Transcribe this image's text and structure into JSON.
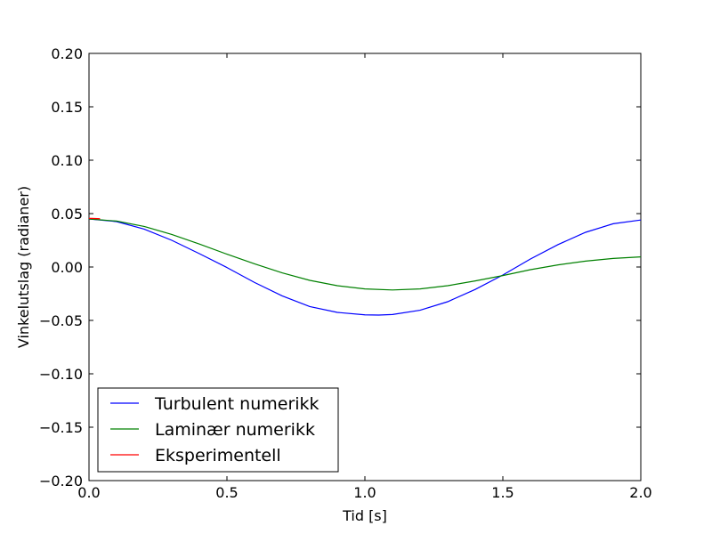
{
  "chart_data": {
    "type": "line",
    "xlabel": "Tid [s]",
    "ylabel": "Vinkelutslag (radianer)",
    "xlim": [
      0.0,
      2.0
    ],
    "ylim": [
      -0.2,
      0.2
    ],
    "xticks": [
      0.0,
      0.5,
      1.0,
      1.5,
      2.0
    ],
    "xtick_labels": [
      "0.0",
      "0.5",
      "1.0",
      "1.5",
      "2.0"
    ],
    "yticks": [
      -0.2,
      -0.15,
      -0.1,
      -0.05,
      0.0,
      0.05,
      0.1,
      0.15,
      0.2
    ],
    "ytick_labels": [
      "−0.20",
      "−0.15",
      "−0.10",
      "−0.05",
      "0.00",
      "0.05",
      "0.10",
      "0.15",
      "0.20"
    ],
    "grid": false,
    "legend_position": "lower-left",
    "series": [
      {
        "name": "Turbulent numerikk",
        "color": "#0000ff",
        "x": [
          0.0,
          0.1,
          0.2,
          0.3,
          0.4,
          0.5,
          0.6,
          0.7,
          0.8,
          0.9,
          1.0,
          1.05,
          1.1,
          1.2,
          1.3,
          1.4,
          1.5,
          1.6,
          1.7,
          1.8,
          1.9,
          2.0
        ],
        "y": [
          0.045,
          0.0425,
          0.0355,
          0.025,
          0.0125,
          -0.0005,
          -0.0145,
          -0.027,
          -0.037,
          -0.0425,
          -0.0448,
          -0.045,
          -0.0445,
          -0.0405,
          -0.0325,
          -0.021,
          -0.0075,
          0.0075,
          0.021,
          0.0325,
          0.0405,
          0.044
        ]
      },
      {
        "name": "Laminær numerikk",
        "color": "#008000",
        "x": [
          0.0,
          0.1,
          0.2,
          0.3,
          0.4,
          0.5,
          0.6,
          0.7,
          0.8,
          0.9,
          1.0,
          1.1,
          1.2,
          1.3,
          1.4,
          1.5,
          1.6,
          1.7,
          1.8,
          1.9,
          2.0
        ],
        "y": [
          0.045,
          0.043,
          0.038,
          0.0305,
          0.0215,
          0.012,
          0.003,
          -0.0055,
          -0.0125,
          -0.0175,
          -0.0205,
          -0.0215,
          -0.0205,
          -0.0175,
          -0.013,
          -0.008,
          -0.0025,
          0.002,
          0.0055,
          0.008,
          0.0095
        ]
      },
      {
        "name": "Eksperimentell",
        "color": "#ff0000",
        "x": [
          0.0,
          0.01,
          0.02,
          0.03,
          0.04
        ],
        "y": [
          0.0455,
          0.0455,
          0.0454,
          0.0453,
          0.0452
        ]
      }
    ]
  }
}
